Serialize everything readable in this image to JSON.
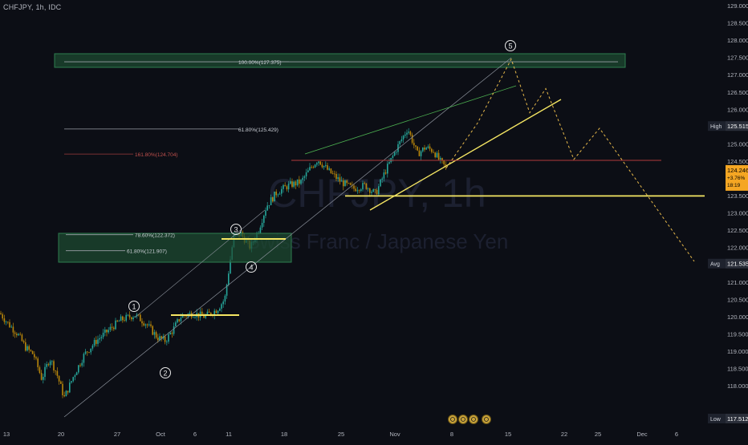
{
  "symbol_line": "CHFJPY, 1h, IDC",
  "watermark": {
    "ticker": "CHFJPY, 1h",
    "name": "Swiss Franc / Japanese Yen"
  },
  "colors": {
    "background": "#0c0e15",
    "candle_up": "#26a69a",
    "candle_down": "#b8860b",
    "yellow": "#f5e663",
    "zone_fill": "#1e4d32",
    "zone_border": "#2e7d4f",
    "red_line": "#b23b3b",
    "price_badge": "#f5a623",
    "axis_text": "#b2b5be"
  },
  "chart_data": {
    "type": "candlestick",
    "ylim": [
      117.4,
      129.2
    ],
    "y_ticks": [
      "129.000",
      "128.500",
      "128.000",
      "127.500",
      "127.000",
      "126.500",
      "126.000",
      "125.500",
      "125.000",
      "124.500",
      "124.000",
      "123.500",
      "123.000",
      "122.500",
      "122.000",
      "121.500",
      "121.000",
      "120.500",
      "120.000",
      "119.500",
      "119.000",
      "118.500",
      "118.000"
    ],
    "x_ticks": [
      "13",
      "20",
      "27",
      "Oct",
      "6",
      "11",
      "18",
      "25",
      "Nov",
      "8",
      "15",
      "22",
      "25",
      "Dec",
      "6"
    ],
    "price_path": [
      {
        "x": 0,
        "y": 120.1
      },
      {
        "x": 10,
        "y": 119.8
      },
      {
        "x": 22,
        "y": 119.5
      },
      {
        "x": 32,
        "y": 119.1
      },
      {
        "x": 42,
        "y": 118.9
      },
      {
        "x": 52,
        "y": 118.2
      },
      {
        "x": 62,
        "y": 118.8
      },
      {
        "x": 70,
        "y": 118.4
      },
      {
        "x": 80,
        "y": 117.65
      },
      {
        "x": 92,
        "y": 118.3
      },
      {
        "x": 105,
        "y": 118.9
      },
      {
        "x": 120,
        "y": 119.3
      },
      {
        "x": 135,
        "y": 119.6
      },
      {
        "x": 150,
        "y": 119.9
      },
      {
        "x": 168,
        "y": 120.05
      },
      {
        "x": 182,
        "y": 119.8
      },
      {
        "x": 196,
        "y": 119.4
      },
      {
        "x": 206,
        "y": 119.3
      },
      {
        "x": 215,
        "y": 119.6
      },
      {
        "x": 225,
        "y": 120.0
      },
      {
        "x": 240,
        "y": 120.1
      },
      {
        "x": 255,
        "y": 120.0
      },
      {
        "x": 270,
        "y": 120.2
      },
      {
        "x": 280,
        "y": 120.5
      },
      {
        "x": 286,
        "y": 121.5
      },
      {
        "x": 291,
        "y": 122.3
      },
      {
        "x": 300,
        "y": 122.4
      },
      {
        "x": 312,
        "y": 122.0
      },
      {
        "x": 322,
        "y": 122.5
      },
      {
        "x": 332,
        "y": 123.2
      },
      {
        "x": 345,
        "y": 123.6
      },
      {
        "x": 360,
        "y": 123.8
      },
      {
        "x": 375,
        "y": 123.9
      },
      {
        "x": 387,
        "y": 124.3
      },
      {
        "x": 396,
        "y": 124.55
      },
      {
        "x": 410,
        "y": 124.2
      },
      {
        "x": 425,
        "y": 123.9
      },
      {
        "x": 440,
        "y": 123.7
      },
      {
        "x": 455,
        "y": 123.8
      },
      {
        "x": 468,
        "y": 123.55
      },
      {
        "x": 480,
        "y": 124.2
      },
      {
        "x": 495,
        "y": 124.9
      },
      {
        "x": 508,
        "y": 125.45
      },
      {
        "x": 520,
        "y": 124.7
      },
      {
        "x": 530,
        "y": 124.9
      },
      {
        "x": 540,
        "y": 124.8
      },
      {
        "x": 548,
        "y": 124.5
      },
      {
        "x": 556,
        "y": 124.3
      }
    ],
    "levels": [
      {
        "label": "100.00%(127.375)",
        "value": 127.375,
        "type": "fib"
      },
      {
        "label": "61.80%(125.429)",
        "value": 125.429,
        "type": "fib"
      },
      {
        "label": "161.80%(124.704)",
        "value": 124.704,
        "type": "fib_red"
      },
      {
        "label": "78.60%(122.372)",
        "value": 122.372,
        "type": "fib"
      },
      {
        "label": "61.80%(121.907)",
        "value": 121.907,
        "type": "fib"
      }
    ],
    "horizontal_levels": [
      {
        "name": "support",
        "value": 123.5
      },
      {
        "name": "resistance_red",
        "value": 124.5
      }
    ],
    "waves": [
      "1",
      "2",
      "3",
      "4",
      "5"
    ],
    "projection_path": [
      {
        "x": 556,
        "y": 124.3
      },
      {
        "x": 595,
        "y": 125.6
      },
      {
        "x": 637,
        "y": 127.45
      },
      {
        "x": 660,
        "y": 125.9
      },
      {
        "x": 680,
        "y": 126.6
      },
      {
        "x": 715,
        "y": 124.55
      },
      {
        "x": 747,
        "y": 125.45
      },
      {
        "x": 865,
        "y": 121.6
      }
    ],
    "right_axis_badges": {
      "high_label": "High",
      "high_value": "125.515",
      "current_value": "124.246",
      "current_change": "+3.76%",
      "countdown": "18:19",
      "avg_label": "Avg",
      "avg_value": "121.535",
      "low_label": "Low",
      "low_value": "117.512"
    }
  }
}
